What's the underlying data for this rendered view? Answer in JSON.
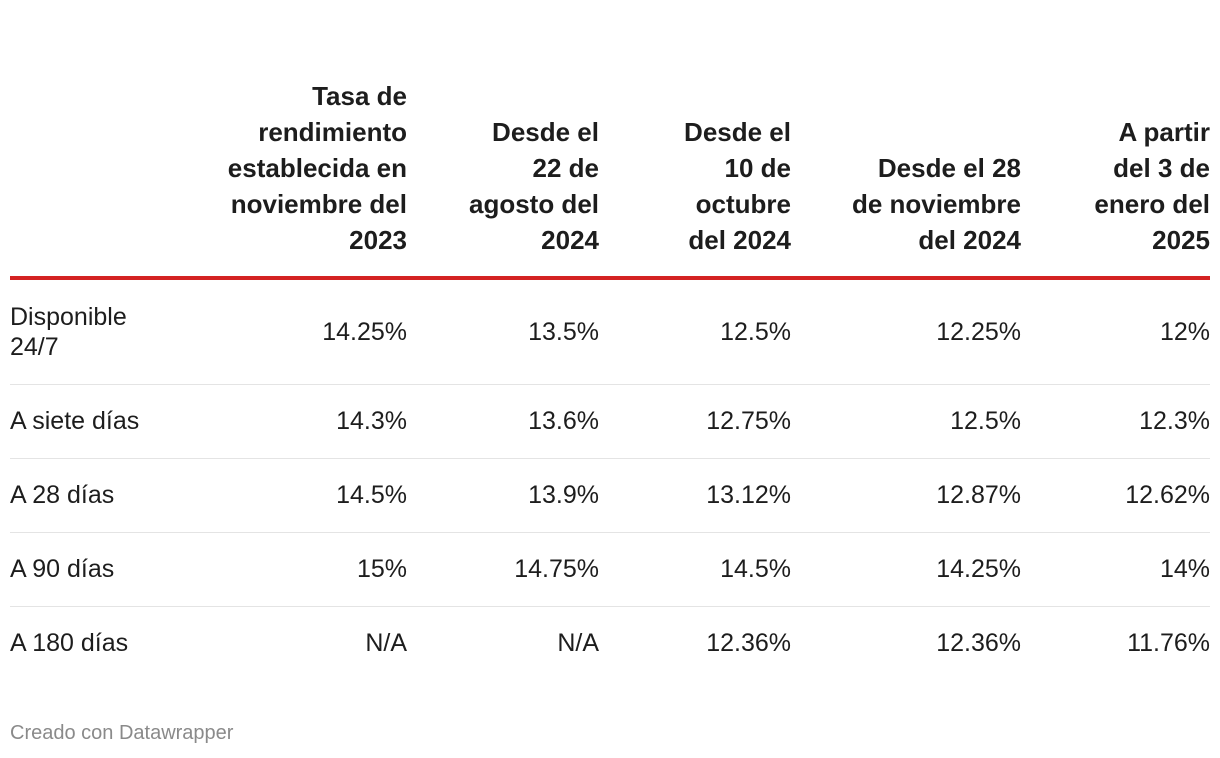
{
  "chart_data": {
    "type": "table",
    "columns": [
      "",
      "Tasa de rendimiento establecida en noviembre del 2023",
      "Desde el 22 de agosto del 2024",
      "Desde el 10 de octubre del 2024",
      "Desde el 28 de noviembre del 2024",
      "A partir del 3 de enero del 2025"
    ],
    "rows": [
      {
        "label": "Disponible 24/7",
        "values": [
          "14.25%",
          "13.5%",
          "12.5%",
          "12.25%",
          "12%"
        ]
      },
      {
        "label": "A siete días",
        "values": [
          "14.3%",
          "13.6%",
          "12.75%",
          "12.5%",
          "12.3%"
        ]
      },
      {
        "label": "A 28 días",
        "values": [
          "14.5%",
          "13.9%",
          "13.12%",
          "12.87%",
          "12.62%"
        ]
      },
      {
        "label": "A 90 días",
        "values": [
          "15%",
          "14.75%",
          "14.5%",
          "14.25%",
          "14%"
        ]
      },
      {
        "label": "A 180 días",
        "values": [
          "N/A",
          "N/A",
          "12.36%",
          "12.36%",
          "11.76%"
        ]
      }
    ],
    "header_rule_color": "#d42222"
  },
  "footer": {
    "credit": "Creado con Datawrapper"
  }
}
